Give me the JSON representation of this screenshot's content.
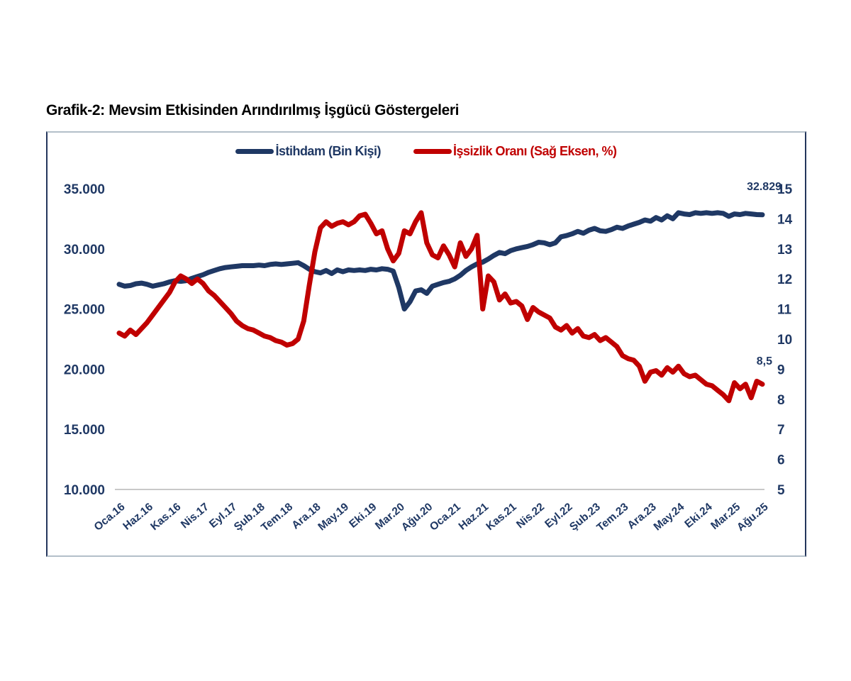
{
  "page": {
    "title": "Grafik-2: Mevsim Etkisinden Arındırılmış İşgücü Göstergeleri"
  },
  "colors": {
    "navy": "#1f3864",
    "red": "#c00000",
    "baseline": "#c9c9c9"
  },
  "legend": [
    {
      "label": "İstihdam (Bin Kişi)",
      "color": "#1f3864"
    },
    {
      "label": "İşsizlik Oranı (Sağ Eksen, %)",
      "color": "#c00000"
    }
  ],
  "chart_data": {
    "type": "line",
    "title": "Grafik-2: Mevsim Etkisinden Arındırılmış İşgücü Göstergeleri",
    "x_tick_labels": [
      "Oca.16",
      "Haz.16",
      "Kas.16",
      "Nis.17",
      "Eyl.17",
      "Şub.18",
      "Tem.18",
      "Ara.18",
      "May.19",
      "Eki.19",
      "Mar.20",
      "Ağu.20",
      "Oca.21",
      "Haz.21",
      "Kas.21",
      "Nis.22",
      "Eyl.22",
      "Şub.23",
      "Tem.23",
      "Ara.23",
      "May.24",
      "Eki.24",
      "Mar.25",
      "Ağu.25"
    ],
    "x_tick_every_n_points": 5,
    "left_axis": {
      "ticks": [
        "35.000",
        "30.000",
        "25.000",
        "20.000",
        "15.000",
        "10.000"
      ],
      "min": 10000,
      "max": 35000
    },
    "right_axis": {
      "ticks": [
        "15",
        "14",
        "13",
        "12",
        "11",
        "10",
        "9",
        "8",
        "7",
        "6",
        "5"
      ],
      "min": 5,
      "max": 15
    },
    "grid": "bottom-baseline-only",
    "legend_position": "top-center",
    "series": [
      {
        "name": "İstihdam (Bin Kişi)",
        "axis": "left",
        "color": "#1f3864",
        "unit": "bin kişi",
        "values": [
          27050,
          26900,
          26950,
          27100,
          27150,
          27050,
          26900,
          27000,
          27100,
          27250,
          27350,
          27300,
          27350,
          27550,
          27700,
          27850,
          28050,
          28200,
          28350,
          28450,
          28500,
          28550,
          28600,
          28600,
          28600,
          28650,
          28600,
          28700,
          28750,
          28700,
          28750,
          28800,
          28850,
          28600,
          28300,
          28100,
          28000,
          28200,
          27950,
          28250,
          28100,
          28250,
          28200,
          28250,
          28200,
          28300,
          28250,
          28350,
          28300,
          28150,
          26800,
          25000,
          25600,
          26500,
          26600,
          26300,
          26900,
          27050,
          27200,
          27300,
          27500,
          27800,
          28200,
          28500,
          28750,
          28900,
          29150,
          29450,
          29700,
          29600,
          29850,
          30000,
          30100,
          30200,
          30350,
          30550,
          30500,
          30350,
          30500,
          31000,
          31100,
          31250,
          31450,
          31300,
          31550,
          31700,
          31500,
          31450,
          31600,
          31800,
          31700,
          31900,
          32050,
          32200,
          32400,
          32300,
          32600,
          32400,
          32750,
          32500,
          33000,
          32900,
          32850,
          33000,
          32950,
          33000,
          32950,
          33000,
          32950,
          32700,
          32900,
          32850,
          32950,
          32900,
          32850,
          32829
        ]
      },
      {
        "name": "İşsizlik Oranı (Sağ Eksen, %)",
        "axis": "right",
        "color": "#c00000",
        "unit": "%",
        "values": [
          10.2,
          10.1,
          10.3,
          10.15,
          10.35,
          10.55,
          10.8,
          11.05,
          11.3,
          11.55,
          11.9,
          12.1,
          12.0,
          11.85,
          12.0,
          11.85,
          11.6,
          11.45,
          11.25,
          11.05,
          10.85,
          10.6,
          10.45,
          10.35,
          10.3,
          10.2,
          10.1,
          10.05,
          9.95,
          9.9,
          9.8,
          9.85,
          10.0,
          10.6,
          11.8,
          12.9,
          13.7,
          13.9,
          13.75,
          13.85,
          13.9,
          13.8,
          13.9,
          14.1,
          14.15,
          13.85,
          13.5,
          13.6,
          13.0,
          12.6,
          12.85,
          13.6,
          13.5,
          13.9,
          14.2,
          13.2,
          12.8,
          12.7,
          13.1,
          12.8,
          12.4,
          13.2,
          12.75,
          13.0,
          13.45,
          11.0,
          12.1,
          11.9,
          11.3,
          11.5,
          11.2,
          11.25,
          11.1,
          10.65,
          11.05,
          10.9,
          10.8,
          10.7,
          10.4,
          10.3,
          10.45,
          10.2,
          10.35,
          10.1,
          10.05,
          10.15,
          9.95,
          10.05,
          9.9,
          9.75,
          9.45,
          9.35,
          9.3,
          9.1,
          8.6,
          8.9,
          8.95,
          8.8,
          9.05,
          8.9,
          9.1,
          8.85,
          8.75,
          8.8,
          8.65,
          8.5,
          8.45,
          8.3,
          8.15,
          7.95,
          8.55,
          8.35,
          8.5,
          8.05,
          8.6,
          8.5
        ]
      }
    ],
    "end_labels": {
      "employment": "32.829",
      "unemployment": "8,5"
    }
  }
}
